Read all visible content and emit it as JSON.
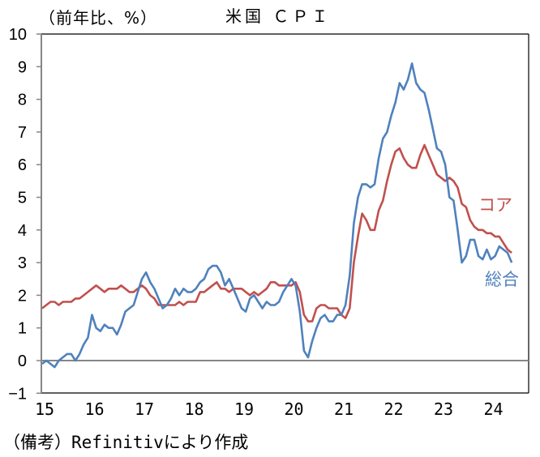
{
  "header": {
    "unit": "（前年比、%）",
    "title": "米国 ＣＰＩ"
  },
  "footer": {
    "source": "（備考）Refinitivにより作成"
  },
  "legend": {
    "core": "コア",
    "headline": "総合"
  },
  "colors": {
    "core": "#c0504d",
    "headline": "#4f81bd",
    "axis": "#868686",
    "frame": "#000000"
  },
  "chart_data": {
    "type": "line",
    "title": "米国 ＣＰＩ",
    "ylabel": "（前年比、%）",
    "xlabel": "",
    "ylim": [
      -1,
      10
    ],
    "yticks": [
      "10",
      "9",
      "8",
      "7",
      "6",
      "5",
      "4",
      "3",
      "2",
      "1",
      "0",
      "-1"
    ],
    "xticks": [
      "15",
      "16",
      "17",
      "18",
      "19",
      "20",
      "21",
      "22",
      "23",
      "24"
    ],
    "x_start": "2015-01",
    "x_frequency": "monthly",
    "grid": false,
    "legend_position": "inline-right",
    "series": [
      {
        "name": "総合",
        "color": "#4f81bd",
        "values": [
          -0.1,
          0.0,
          -0.1,
          -0.2,
          0.0,
          0.1,
          0.2,
          0.2,
          0.0,
          0.2,
          0.5,
          0.7,
          1.4,
          1.0,
          0.9,
          1.1,
          1.0,
          1.0,
          0.8,
          1.1,
          1.5,
          1.6,
          1.7,
          2.1,
          2.5,
          2.7,
          2.4,
          2.2,
          1.9,
          1.6,
          1.7,
          1.9,
          2.2,
          2.0,
          2.2,
          2.1,
          2.1,
          2.2,
          2.4,
          2.5,
          2.8,
          2.9,
          2.9,
          2.7,
          2.3,
          2.5,
          2.2,
          1.9,
          1.6,
          1.5,
          1.9,
          2.0,
          1.8,
          1.6,
          1.8,
          1.7,
          1.7,
          1.8,
          2.1,
          2.3,
          2.5,
          2.3,
          1.5,
          0.3,
          0.1,
          0.6,
          1.0,
          1.3,
          1.4,
          1.2,
          1.2,
          1.4,
          1.4,
          1.7,
          2.6,
          4.2,
          5.0,
          5.4,
          5.4,
          5.3,
          5.4,
          6.2,
          6.8,
          7.0,
          7.5,
          7.9,
          8.5,
          8.3,
          8.6,
          9.1,
          8.5,
          8.3,
          8.2,
          7.7,
          7.1,
          6.5,
          6.4,
          6.0,
          5.0,
          4.9,
          4.0,
          3.0,
          3.2,
          3.7,
          3.7,
          3.2,
          3.1,
          3.4,
          3.1,
          3.2,
          3.5,
          3.4,
          3.3,
          3.0
        ],
        "approximate": true
      },
      {
        "name": "コア",
        "color": "#c0504d",
        "values": [
          1.6,
          1.7,
          1.8,
          1.8,
          1.7,
          1.8,
          1.8,
          1.8,
          1.9,
          1.9,
          2.0,
          2.1,
          2.2,
          2.3,
          2.2,
          2.1,
          2.2,
          2.2,
          2.2,
          2.3,
          2.2,
          2.1,
          2.1,
          2.2,
          2.3,
          2.2,
          2.0,
          1.9,
          1.7,
          1.7,
          1.7,
          1.7,
          1.7,
          1.8,
          1.7,
          1.8,
          1.8,
          1.8,
          2.1,
          2.1,
          2.2,
          2.3,
          2.4,
          2.2,
          2.2,
          2.1,
          2.2,
          2.2,
          2.2,
          2.1,
          2.0,
          2.1,
          2.0,
          2.1,
          2.2,
          2.4,
          2.4,
          2.3,
          2.3,
          2.3,
          2.3,
          2.4,
          2.1,
          1.4,
          1.2,
          1.2,
          1.6,
          1.7,
          1.7,
          1.6,
          1.6,
          1.6,
          1.4,
          1.3,
          1.6,
          3.0,
          3.8,
          4.5,
          4.3,
          4.0,
          4.0,
          4.6,
          4.9,
          5.5,
          6.0,
          6.4,
          6.5,
          6.2,
          6.0,
          5.9,
          5.9,
          6.3,
          6.6,
          6.3,
          6.0,
          5.7,
          5.6,
          5.5,
          5.6,
          5.5,
          5.3,
          4.8,
          4.7,
          4.3,
          4.1,
          4.0,
          4.0,
          3.9,
          3.9,
          3.8,
          3.8,
          3.6,
          3.4,
          3.3
        ],
        "approximate": true
      }
    ]
  }
}
